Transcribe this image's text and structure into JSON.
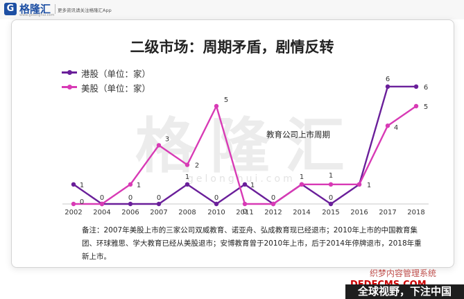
{
  "header": {
    "logo_mark": "G",
    "brand": "格隆汇",
    "domain": "www.gelonghui.com",
    "tagline": "更多资讯请关注格隆汇App"
  },
  "watermark": {
    "text": "格隆汇",
    "url": "gelonghui.com"
  },
  "chart_data": {
    "type": "line",
    "title": "二级市场：周期矛盾，剧情反转",
    "x": [
      "2002",
      "2004",
      "2006",
      "2007",
      "2008",
      "2010",
      "2011",
      "2012",
      "2014",
      "2015",
      "2016",
      "2017",
      "2018"
    ],
    "series": [
      {
        "name": "港股（单位：家）",
        "color": "#6a1f9a",
        "values": [
          1,
          0,
          0,
          0,
          1,
          0,
          1,
          0,
          1,
          0,
          1,
          6,
          6
        ]
      },
      {
        "name": "美股（单位：家）",
        "color": "#d83ab5",
        "values": [
          0,
          0,
          1,
          3,
          2,
          5,
          0,
          0,
          1,
          1,
          1,
          4,
          5
        ]
      }
    ],
    "annotation": "教育公司上市周期",
    "ylim": [
      0,
      6
    ],
    "grid": false,
    "legend": "top-left",
    "note": "备注：2007年美股上市的三家公司双威教育、诺亚舟、弘成教育现已经退市；2010年上市的中国教育集团、环球雅思、学大教育已经从美股退市；安博教育曾于2010年上市，后于2014年停牌退市，2018年重新上市。"
  },
  "overlay_watermark": {
    "line1": "织梦内容管理系统",
    "line2": "DEDECMS.COM"
  },
  "footer": {
    "text": "全球视野，下注中国"
  }
}
